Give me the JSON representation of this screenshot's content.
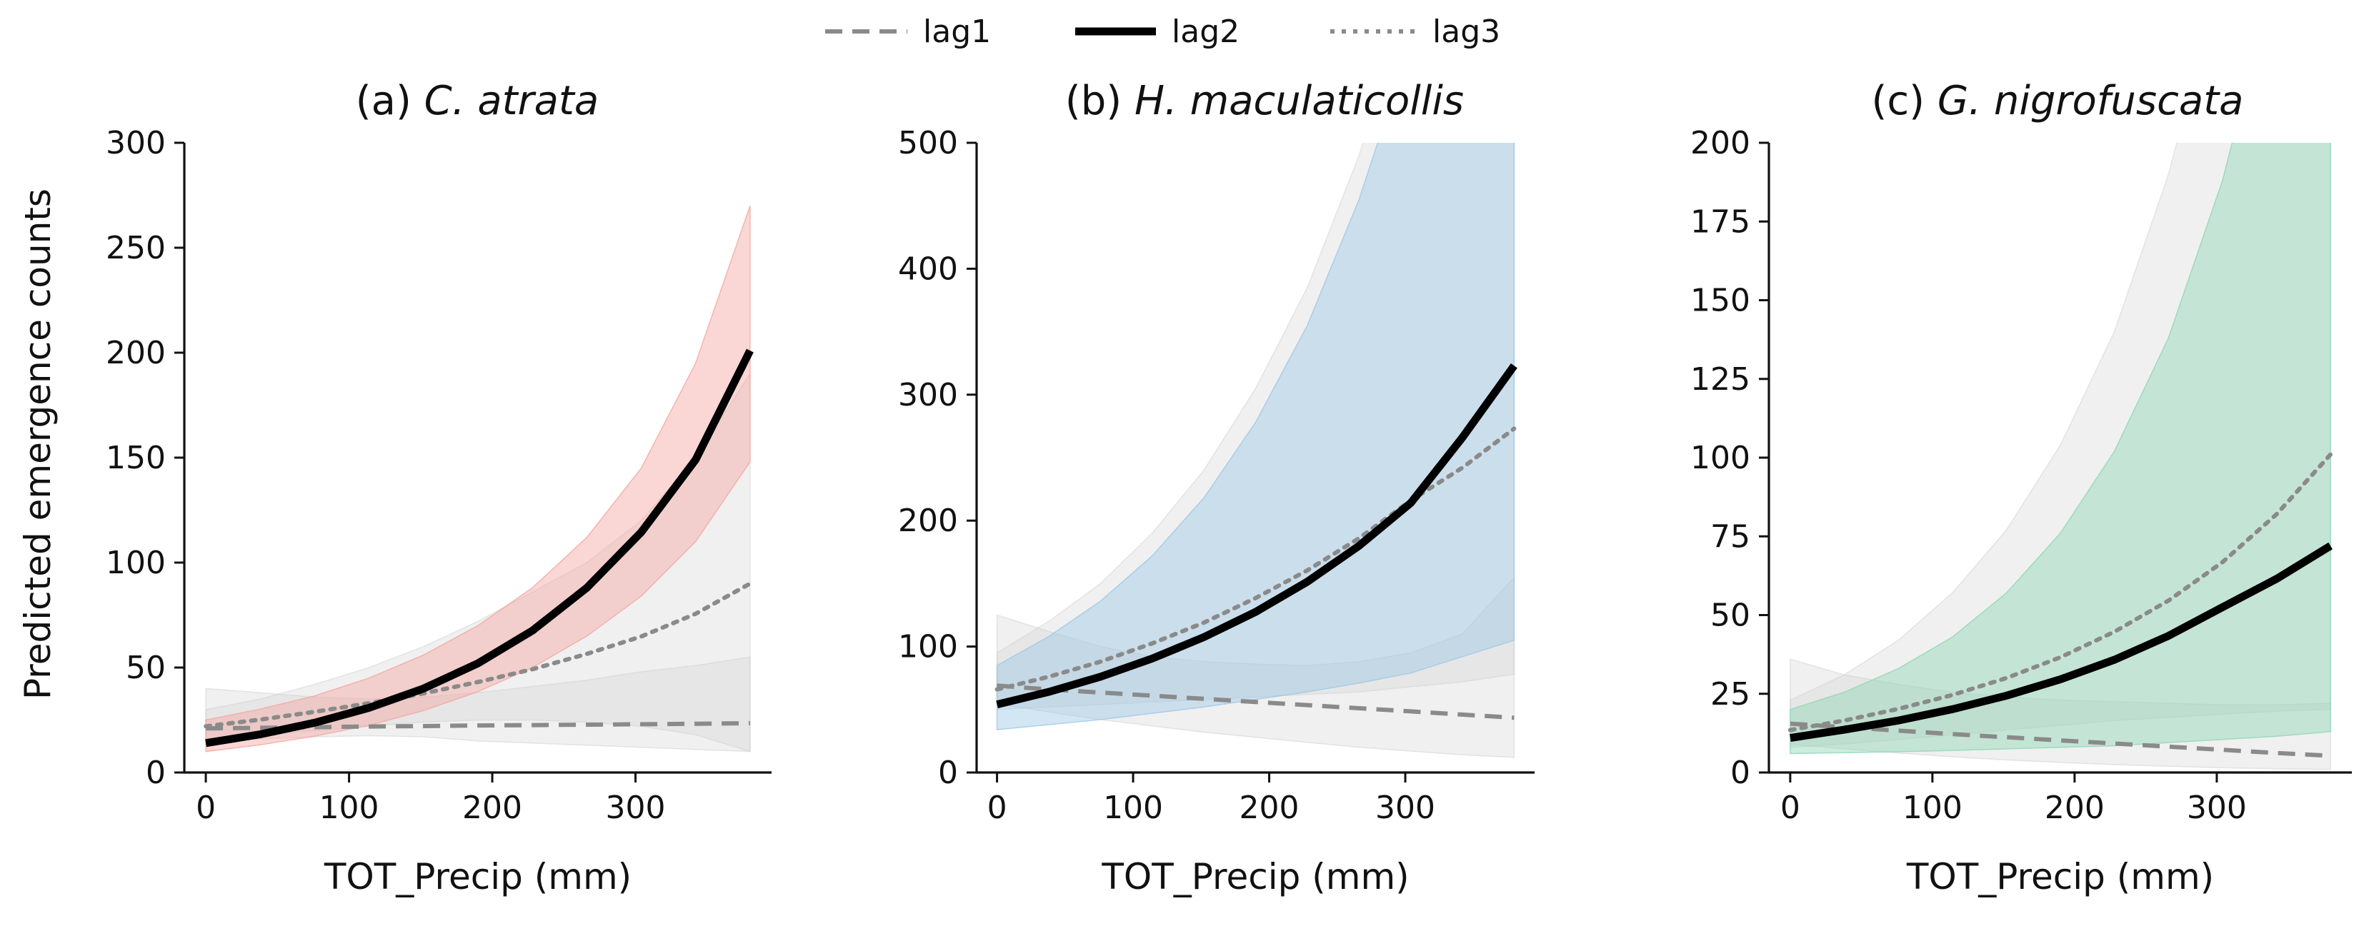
{
  "figure": {
    "ylabel": "Predicted emergence counts",
    "legend": {
      "placement": "top-center",
      "items": [
        {
          "label": "lag1",
          "style": "dashed"
        },
        {
          "label": "lag2",
          "style": "solid"
        },
        {
          "label": "lag3",
          "style": "dotted"
        }
      ]
    },
    "colors": {
      "lag1": "#8a8a8a",
      "lag2": "#000000",
      "lag3": "#8a8a8a",
      "grey_band": "#cfcfcf",
      "panel_a": "#f4a6a0",
      "panel_b": "#9ec8e6",
      "panel_c": "#8fd6b4"
    }
  },
  "chart_data": [
    {
      "type": "line",
      "title_prefix": "(a) ",
      "title_species": "C. atrata",
      "xlabel": "TOT_Precip (mm)",
      "ylabel": "Predicted emergence counts",
      "xlim": [
        -15,
        395
      ],
      "ylim": [
        0,
        300
      ],
      "xticks": [
        0,
        100,
        200,
        300
      ],
      "yticks": [
        0,
        50,
        100,
        150,
        200,
        250,
        300
      ],
      "xtick_labels": [
        "0",
        "100",
        "200",
        "300"
      ],
      "ytick_labels": [
        "0",
        "50",
        "100",
        "150",
        "200",
        "250",
        "300"
      ],
      "x": [
        0,
        38,
        76,
        114,
        152,
        190,
        228,
        266,
        304,
        342,
        380
      ],
      "series": [
        {
          "name": "lag1",
          "values": [
            21,
            21.3,
            21.6,
            21.9,
            22.1,
            22.4,
            22.6,
            22.8,
            23.0,
            23.2,
            23.5
          ],
          "lower": [
            15,
            16,
            17,
            17.5,
            17,
            15,
            14,
            13,
            12,
            11,
            10
          ],
          "upper": [
            40,
            38,
            36,
            35,
            36,
            38,
            41,
            44,
            48,
            51,
            55
          ]
        },
        {
          "name": "lag2",
          "values": [
            14,
            18.2,
            23.7,
            30.8,
            40.0,
            52.0,
            67.6,
            88.0,
            114.5,
            149.0,
            201.0
          ],
          "lower": [
            10,
            13.2,
            17.3,
            22.5,
            29.5,
            38.5,
            50,
            65,
            84,
            110,
            148
          ],
          "upper": [
            25,
            30.2,
            36.5,
            45,
            56,
            70,
            88,
            112,
            145,
            195,
            270
          ]
        },
        {
          "name": "lag3",
          "values": [
            22,
            25.2,
            28.9,
            33.0,
            37.7,
            43.1,
            49.2,
            56.5,
            64.8,
            75.6,
            90.0
          ],
          "lower": [
            16,
            18,
            20,
            22,
            24,
            25,
            25,
            24,
            22,
            18,
            10
          ],
          "upper": [
            30,
            35,
            42,
            50,
            60,
            72,
            86,
            100,
            120,
            150,
            190
          ]
        }
      ],
      "band_color": "#f4a6a0"
    },
    {
      "type": "line",
      "title_prefix": "(b) ",
      "title_species": "H. maculaticollis",
      "xlabel": "TOT_Precip (mm)",
      "xlim": [
        -15,
        395
      ],
      "ylim": [
        0,
        500
      ],
      "xticks": [
        0,
        100,
        200,
        300
      ],
      "yticks": [
        0,
        100,
        200,
        300,
        400,
        500
      ],
      "xtick_labels": [
        "0",
        "100",
        "200",
        "300"
      ],
      "ytick_labels": [
        "0",
        "100",
        "200",
        "300",
        "400",
        "500"
      ],
      "x": [
        0,
        38,
        76,
        114,
        152,
        190,
        228,
        266,
        304,
        342,
        380
      ],
      "series": [
        {
          "name": "lag1",
          "values": [
            69,
            66,
            63.5,
            61,
            58.5,
            56,
            53.5,
            51,
            48.5,
            46,
            43.5
          ],
          "lower": [
            55,
            48,
            42,
            37,
            32,
            28,
            24,
            20,
            17,
            14,
            12
          ],
          "upper": [
            125,
            112,
            100,
            92,
            88,
            86,
            85,
            88,
            95,
            110,
            155
          ]
        },
        {
          "name": "lag2",
          "values": [
            54,
            64,
            76,
            90.5,
            107.5,
            127.5,
            151.5,
            180,
            214,
            266,
            323
          ],
          "lower": [
            34,
            38,
            42,
            47,
            52,
            58,
            64,
            71,
            79,
            92,
            105
          ],
          "upper": [
            85,
            108,
            136,
            172,
            218,
            278,
            355,
            455,
            580,
            740,
            950
          ]
        },
        {
          "name": "lag3",
          "values": [
            66,
            76,
            88,
            102.5,
            119,
            138.5,
            160.5,
            186,
            216,
            242,
            273
          ],
          "lower": [
            50,
            52,
            54,
            56,
            58,
            60,
            62,
            64,
            68,
            72,
            78
          ],
          "upper": [
            95,
            120,
            150,
            190,
            240,
            305,
            385,
            490,
            620,
            780,
            980
          ]
        }
      ],
      "band_color": "#9ec8e6"
    },
    {
      "type": "line",
      "title_prefix": "(c) ",
      "title_species": "G. nigrofuscata",
      "xlabel": "TOT_Precip (mm)",
      "xlim": [
        -15,
        395
      ],
      "ylim": [
        0,
        200
      ],
      "xticks": [
        0,
        100,
        200,
        300
      ],
      "yticks": [
        0,
        25,
        50,
        75,
        100,
        125,
        150,
        175,
        200
      ],
      "xtick_labels": [
        "0",
        "100",
        "200",
        "300"
      ],
      "ytick_labels": [
        "0",
        "25",
        "50",
        "75",
        "100",
        "125",
        "150",
        "175",
        "200"
      ],
      "x": [
        0,
        38,
        76,
        114,
        152,
        190,
        228,
        266,
        304,
        342,
        380
      ],
      "series": [
        {
          "name": "lag1",
          "values": [
            15.5,
            14.4,
            13.3,
            12.2,
            11.2,
            10.2,
            9.2,
            8.2,
            7.2,
            6.2,
            5.3
          ],
          "lower": [
            9,
            7.5,
            6.2,
            5,
            4,
            3.2,
            2.5,
            2,
            1.5,
            1.2,
            1
          ],
          "upper": [
            36,
            31,
            28,
            25.5,
            24,
            23,
            22.5,
            22,
            21.5,
            21.5,
            22
          ]
        },
        {
          "name": "lag2",
          "values": [
            11,
            13.6,
            16.5,
            20.1,
            24.4,
            29.6,
            35.8,
            43.4,
            52.5,
            61.5,
            72.0
          ],
          "lower": [
            6,
            6.3,
            6.6,
            7,
            7.5,
            8,
            8.5,
            9.5,
            10.5,
            11.5,
            13
          ],
          "upper": [
            20,
            25.5,
            33,
            43,
            57,
            76,
            102,
            138,
            188,
            255,
            345
          ]
        },
        {
          "name": "lag3",
          "values": [
            13.5,
            16.5,
            20.2,
            24.6,
            30.0,
            36.6,
            44.7,
            54.6,
            66.8,
            82.0,
            101.0
          ],
          "lower": [
            8,
            9,
            10.5,
            12,
            13.5,
            15,
            16.5,
            17.5,
            18.5,
            19.5,
            20
          ],
          "upper": [
            23,
            31,
            42,
            57,
            77,
            104,
            140,
            190,
            255,
            345,
            460
          ]
        }
      ],
      "band_color": "#8fd6b4"
    }
  ]
}
